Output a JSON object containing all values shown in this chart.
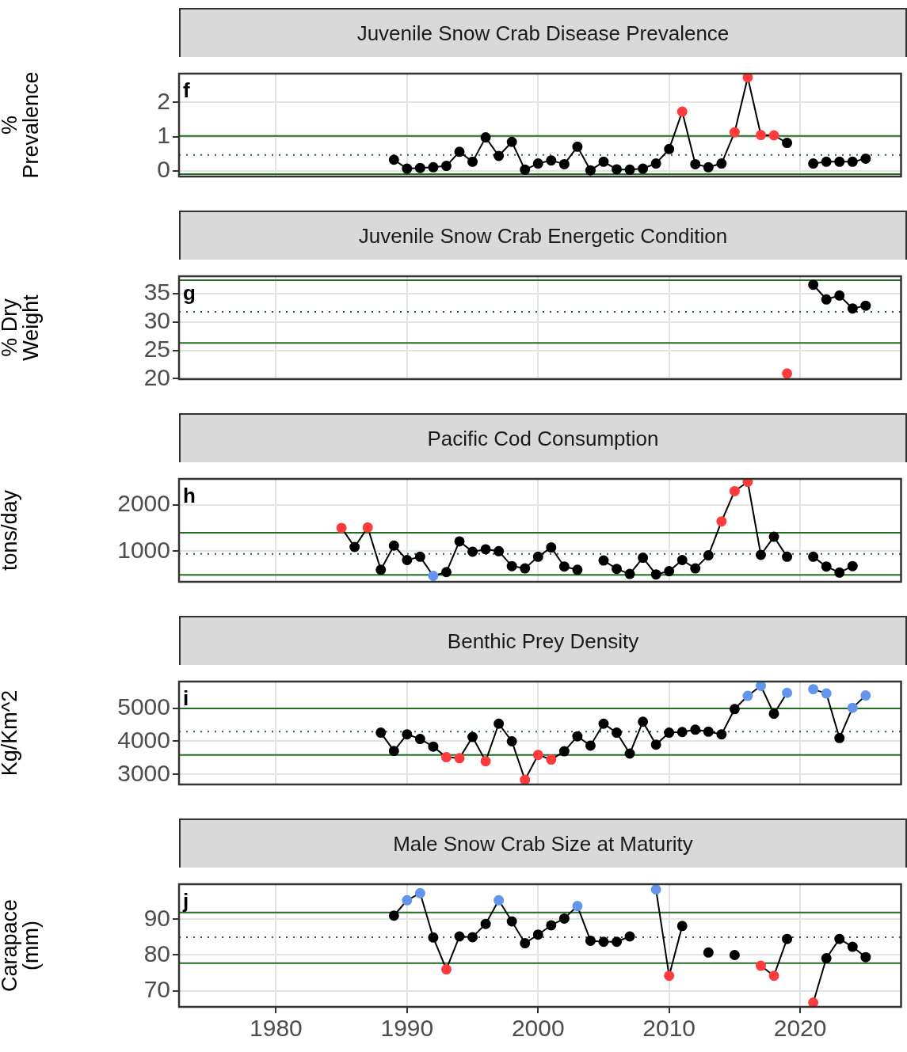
{
  "chart_data": [
    {
      "type": "line",
      "title": "Juvenile Snow Crab Disease Prevalence",
      "ylabel": "%\nPrevalence",
      "annotations": [
        "f"
      ],
      "tick_labels": "y",
      "grid": true,
      "marker": "circle",
      "x": [
        1989,
        1990,
        1991,
        1992,
        1993,
        1994,
        1995,
        1996,
        1997,
        1998,
        1999,
        2000,
        2001,
        2002,
        2003,
        2004,
        2005,
        2006,
        2007,
        2008,
        2009,
        2010,
        2011,
        2012,
        2013,
        2014,
        2015,
        2016,
        2017,
        2018,
        2019,
        2020,
        2021,
        2022,
        2023,
        2024,
        2025
      ],
      "series": [
        {
          "color": "#000000",
          "values": [
            0.33,
            0.07,
            0.09,
            0.11,
            0.15,
            0.56,
            0.27,
            0.98,
            0.44,
            0.85,
            0.04,
            0.22,
            0.31,
            0.2,
            0.71,
            0.02,
            0.27,
            0.05,
            0.04,
            0.07,
            0.22,
            0.64,
            1.73,
            0.2,
            0.11,
            0.22,
            1.13,
            2.73,
            1.05,
            1.04,
            0.82,
            null,
            0.22,
            0.27,
            0.27,
            0.27,
            0.36
          ],
          "colors": [
            "#000000",
            "#000000",
            "#000000",
            "#000000",
            "#000000",
            "#000000",
            "#000000",
            "#000000",
            "#000000",
            "#000000",
            "#000000",
            "#000000",
            "#000000",
            "#000000",
            "#000000",
            "#000000",
            "#000000",
            "#000000",
            "#000000",
            "#000000",
            "#000000",
            "#000000",
            "#ff3b3b",
            "#000000",
            "#000000",
            "#000000",
            "#ff3b3b",
            "#ff3b3b",
            "#ff3b3b",
            "#ff3b3b",
            "#000000",
            "#000000",
            "#000000",
            "#000000",
            "#000000",
            "#000000",
            "#000000"
          ]
        }
      ],
      "xlim": [
        1972.6,
        2027.7
      ],
      "xticks": [
        1980,
        1990,
        2000,
        2010,
        2020
      ],
      "ylim": [
        -0.16,
        2.84
      ],
      "yticks": [
        0,
        1,
        2
      ],
      "ref_lines": [
        {
          "axis": "y",
          "value": 1.02,
          "color": "#1f6e1f",
          "line_style": "solid"
        },
        {
          "axis": "y",
          "value": 0.47,
          "color": "#1f6e1f",
          "line_style": "dotted"
        },
        {
          "axis": "y",
          "value": -0.09,
          "color": "#1f6e1f",
          "line_style": "solid"
        }
      ]
    },
    {
      "type": "line",
      "title": "Juvenile Snow Crab Energetic Condition",
      "ylabel": "% Dry\nWeight",
      "annotations": [
        "g"
      ],
      "tick_labels": "y",
      "grid": true,
      "marker": "circle",
      "x": [
        2019,
        2020,
        2021,
        2022,
        2023,
        2024,
        2025
      ],
      "series": [
        {
          "color": "#000000",
          "values": [
            20.9,
            null,
            36.6,
            34.0,
            34.7,
            32.4,
            32.9
          ],
          "colors": [
            "#ff3b3b",
            "#000000",
            "#000000",
            "#000000",
            "#000000",
            "#000000",
            "#000000"
          ]
        }
      ],
      "xlim": [
        1972.6,
        2027.7
      ],
      "xticks": [
        1980,
        1990,
        2000,
        2010,
        2020
      ],
      "ylim": [
        19.9,
        38.1
      ],
      "yticks": [
        20,
        25,
        30,
        35
      ],
      "ref_lines": [
        {
          "axis": "y",
          "value": 37.4,
          "color": "#1f6e1f",
          "line_style": "solid"
        },
        {
          "axis": "y",
          "value": 31.8,
          "color": "#1f6e1f",
          "line_style": "dotted"
        },
        {
          "axis": "y",
          "value": 26.3,
          "color": "#1f6e1f",
          "line_style": "solid"
        }
      ]
    },
    {
      "type": "line",
      "title": "Pacific Cod Consumption",
      "ylabel": "tons/day",
      "annotations": [
        "h"
      ],
      "tick_labels": "y",
      "grid": true,
      "marker": "circle",
      "x": [
        1985,
        1986,
        1987,
        1988,
        1989,
        1990,
        1991,
        1992,
        1993,
        1994,
        1995,
        1996,
        1997,
        1998,
        1999,
        2000,
        2001,
        2002,
        2003,
        2004,
        2005,
        2006,
        2007,
        2008,
        2009,
        2010,
        2011,
        2012,
        2013,
        2014,
        2015,
        2016,
        2017,
        2018,
        2019,
        2020,
        2021,
        2022,
        2023,
        2024
      ],
      "series": [
        {
          "color": "#000000",
          "values": [
            1500,
            1090,
            1510,
            600,
            1120,
            810,
            880,
            470,
            550,
            1210,
            990,
            1040,
            1000,
            680,
            630,
            880,
            1080,
            670,
            600,
            null,
            800,
            620,
            510,
            860,
            500,
            570,
            810,
            630,
            910,
            1640,
            2290,
            2490,
            920,
            1310,
            880,
            null,
            880,
            670,
            540,
            680
          ],
          "colors": [
            "#ff3b3b",
            "#000000",
            "#ff3b3b",
            "#000000",
            "#000000",
            "#000000",
            "#000000",
            "#6495ed",
            "#000000",
            "#000000",
            "#000000",
            "#000000",
            "#000000",
            "#000000",
            "#000000",
            "#000000",
            "#000000",
            "#000000",
            "#000000",
            "#000000",
            "#000000",
            "#000000",
            "#000000",
            "#000000",
            "#000000",
            "#000000",
            "#000000",
            "#000000",
            "#000000",
            "#ff3b3b",
            "#ff3b3b",
            "#ff3b3b",
            "#000000",
            "#000000",
            "#000000",
            "#000000",
            "#000000",
            "#000000",
            "#000000",
            "#000000"
          ]
        }
      ],
      "xlim": [
        1972.6,
        2027.7
      ],
      "xticks": [
        1980,
        1990,
        2000,
        2010,
        2020
      ],
      "ylim": [
        342,
        2553
      ],
      "yticks": [
        1000,
        2000
      ],
      "ref_lines": [
        {
          "axis": "y",
          "value": 1395,
          "color": "#1f6e1f",
          "line_style": "solid"
        },
        {
          "axis": "y",
          "value": 940,
          "color": "#1f6e1f",
          "line_style": "dotted"
        },
        {
          "axis": "y",
          "value": 490,
          "color": "#1f6e1f",
          "line_style": "solid"
        }
      ]
    },
    {
      "type": "line",
      "title": "Benthic Prey Density",
      "ylabel": "Kg/Km^2",
      "annotations": [
        "i"
      ],
      "tick_labels": "y",
      "grid": true,
      "marker": "circle",
      "x": [
        1988,
        1989,
        1990,
        1991,
        1992,
        1993,
        1994,
        1995,
        1996,
        1997,
        1998,
        1999,
        2000,
        2001,
        2002,
        2003,
        2004,
        2005,
        2006,
        2007,
        2008,
        2009,
        2010,
        2011,
        2012,
        2013,
        2014,
        2015,
        2016,
        2017,
        2018,
        2019,
        2020,
        2021,
        2022,
        2023,
        2024,
        2025
      ],
      "series": [
        {
          "color": "#000000",
          "values": [
            4260,
            3710,
            4210,
            4070,
            3840,
            3520,
            3490,
            4130,
            3400,
            4530,
            4000,
            2840,
            3590,
            3450,
            3700,
            4150,
            3870,
            4530,
            4260,
            3630,
            4590,
            3900,
            4260,
            4280,
            4350,
            4290,
            4210,
            4970,
            5370,
            5670,
            4830,
            5460,
            null,
            5570,
            5440,
            4100,
            5010,
            5380
          ],
          "colors": [
            "#000000",
            "#000000",
            "#000000",
            "#000000",
            "#000000",
            "#ff3b3b",
            "#ff3b3b",
            "#000000",
            "#ff3b3b",
            "#000000",
            "#000000",
            "#ff3b3b",
            "#ff3b3b",
            "#ff3b3b",
            "#000000",
            "#000000",
            "#000000",
            "#000000",
            "#000000",
            "#000000",
            "#000000",
            "#000000",
            "#000000",
            "#000000",
            "#000000",
            "#000000",
            "#000000",
            "#000000",
            "#6495ed",
            "#6495ed",
            "#000000",
            "#6495ed",
            "#000000",
            "#6495ed",
            "#6495ed",
            "#000000",
            "#6495ed",
            "#6495ed"
          ]
        }
      ],
      "xlim": [
        1972.6,
        2027.7
      ],
      "xticks": [
        1980,
        1990,
        2000,
        2010,
        2020
      ],
      "ylim": [
        2700,
        5800
      ],
      "yticks": [
        3000,
        4000,
        5000
      ],
      "ref_lines": [
        {
          "axis": "y",
          "value": 4990,
          "color": "#1f6e1f",
          "line_style": "solid"
        },
        {
          "axis": "y",
          "value": 4290,
          "color": "#1f6e1f",
          "line_style": "dotted"
        },
        {
          "axis": "y",
          "value": 3590,
          "color": "#1f6e1f",
          "line_style": "solid"
        }
      ]
    },
    {
      "type": "line",
      "title": "Male Snow Crab Size at Maturity",
      "ylabel": "Carapace\n(mm)",
      "annotations": [
        "j"
      ],
      "grid": true,
      "marker": "circle",
      "x": [
        1989,
        1990,
        1991,
        1992,
        1993,
        1994,
        1995,
        1996,
        1997,
        1998,
        1999,
        2000,
        2001,
        2002,
        2003,
        2004,
        2005,
        2006,
        2007,
        2008,
        2009,
        2010,
        2011,
        2012,
        2013,
        2014,
        2015,
        2016,
        2017,
        2018,
        2019,
        2020,
        2021,
        2022,
        2023,
        2024,
        2025
      ],
      "series": [
        {
          "color": "#000000",
          "values": [
            91.0,
            95.3,
            97.3,
            84.9,
            76.0,
            85.2,
            85.0,
            88.7,
            95.3,
            89.4,
            83.3,
            85.7,
            88.3,
            90.2,
            93.7,
            84.0,
            83.7,
            83.7,
            85.2,
            null,
            98.3,
            74.2,
            88.1,
            null,
            80.7,
            null,
            80.0,
            null,
            77.0,
            74.2,
            84.5,
            null,
            66.7,
            79.1,
            84.5,
            82.3,
            79.4
          ],
          "colors": [
            "#000000",
            "#6495ed",
            "#6495ed",
            "#000000",
            "#ff3b3b",
            "#000000",
            "#000000",
            "#000000",
            "#6495ed",
            "#000000",
            "#000000",
            "#000000",
            "#000000",
            "#000000",
            "#6495ed",
            "#000000",
            "#000000",
            "#000000",
            "#000000",
            "#000000",
            "#6495ed",
            "#ff3b3b",
            "#000000",
            "#000000",
            "#000000",
            "#000000",
            "#000000",
            "#000000",
            "#ff3b3b",
            "#ff3b3b",
            "#000000",
            "#000000",
            "#ff3b3b",
            "#000000",
            "#000000",
            "#000000",
            "#000000"
          ]
        }
      ],
      "xlim": [
        1972.6,
        2027.7
      ],
      "xticks": [
        1980,
        1990,
        2000,
        2010,
        2020
      ],
      "ylim": [
        65.5,
        99.8
      ],
      "yticks": [
        70,
        80,
        90
      ],
      "ref_lines": [
        {
          "axis": "y",
          "value": 91.9,
          "color": "#1f6e1f",
          "line_style": "solid"
        },
        {
          "axis": "y",
          "value": 85.0,
          "color": "#1f6e1f",
          "line_style": "dotted"
        },
        {
          "axis": "y",
          "value": 77.7,
          "color": "#1f6e1f",
          "line_style": "solid"
        }
      ]
    }
  ]
}
